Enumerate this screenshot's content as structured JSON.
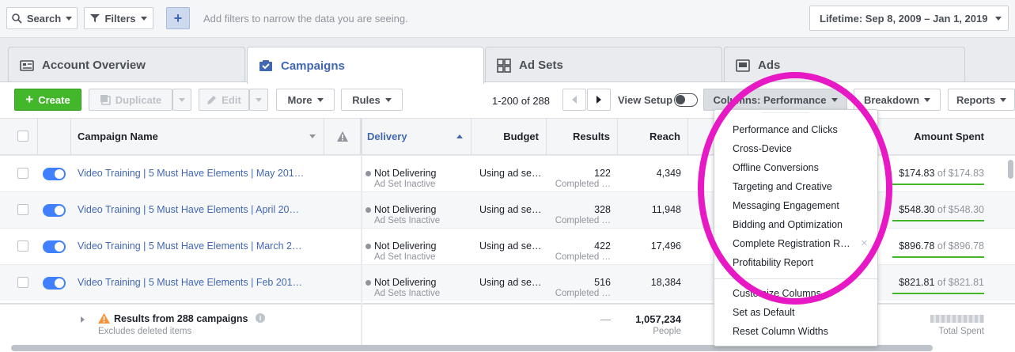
{
  "topbar": {
    "search_label": "Search",
    "filters_label": "Filters",
    "add_hint": "Add filters to narrow the data you are seeing.",
    "date_range": "Lifetime: Sep 8, 2009 – Jan 1, 2019"
  },
  "tabs": [
    {
      "label": "Account Overview",
      "icon": "account-overview-icon"
    },
    {
      "label": "Campaigns",
      "icon": "campaigns-icon"
    },
    {
      "label": "Ad Sets",
      "icon": "ad-sets-icon"
    },
    {
      "label": "Ads",
      "icon": "ads-icon"
    }
  ],
  "toolbar": {
    "create": "Create",
    "duplicate": "Duplicate",
    "edit": "Edit",
    "more": "More",
    "rules": "Rules",
    "pagination": "1-200 of 288",
    "view_setup": "View Setup",
    "columns": "Columns: Performance",
    "breakdown": "Breakdown",
    "reports": "Reports"
  },
  "table": {
    "headers": {
      "name": "Campaign Name",
      "delivery": "Delivery",
      "budget": "Budget",
      "results": "Results",
      "reach": "Reach",
      "amount_spent": "Amount Spent"
    },
    "rows": [
      {
        "name": "Video Training | 5 Must Have Elements | May 201…",
        "delivery": "Not Delivering",
        "delivery_sub": "Ad Set Inactive",
        "budget": "Using ad se…",
        "results": "122",
        "results_sub": "Completed …",
        "reach": "4,349",
        "spent": "$174.83",
        "spent_of": "of $174.83"
      },
      {
        "name": "Video Training | 5 Must Have Elements | April 20…",
        "delivery": "Not Delivering",
        "delivery_sub": "Ad Sets Inactive",
        "budget": "Using ad se…",
        "results": "328",
        "results_sub": "Completed …",
        "reach": "11,948",
        "spent": "$548.30",
        "spent_of": "of $548.30"
      },
      {
        "name": "Video Training | 5 Must Have Elements | March 2…",
        "delivery": "Not Delivering",
        "delivery_sub": "Ad Set Inactive",
        "budget": "Using ad se…",
        "results": "422",
        "results_sub": "Completed …",
        "reach": "17,496",
        "spent": "$896.78",
        "spent_of": "of $896.78"
      },
      {
        "name": "Video Training | 5 Must Have Elements | Feb 201…",
        "delivery": "Not Delivering",
        "delivery_sub": "Ad Sets Inactive",
        "budget": "Using ad se…",
        "results": "516",
        "results_sub": "Completed …",
        "reach": "18,384",
        "spent": "$821.81",
        "spent_of": "of $821.81"
      }
    ],
    "summary": {
      "title": "Results from 288 campaigns",
      "subtitle": "Excludes deleted items",
      "results": "—",
      "reach": "1,057,234",
      "reach_sub": "People",
      "spent_sub": "Total Spent"
    }
  },
  "columns_menu": {
    "items": [
      "Performance and Clicks",
      "Cross-Device",
      "Offline Conversions",
      "Targeting and Creative",
      "Messaging Engagement",
      "Bidding and Optimization",
      "Complete Registration R…",
      "Profitability Report"
    ],
    "footer": [
      "Customize Columns…",
      "Set as Default",
      "Reset Column Widths"
    ]
  },
  "colors": {
    "create_green": "#42b72a",
    "link_blue": "#4267b2",
    "annotation": "#e619c4"
  }
}
